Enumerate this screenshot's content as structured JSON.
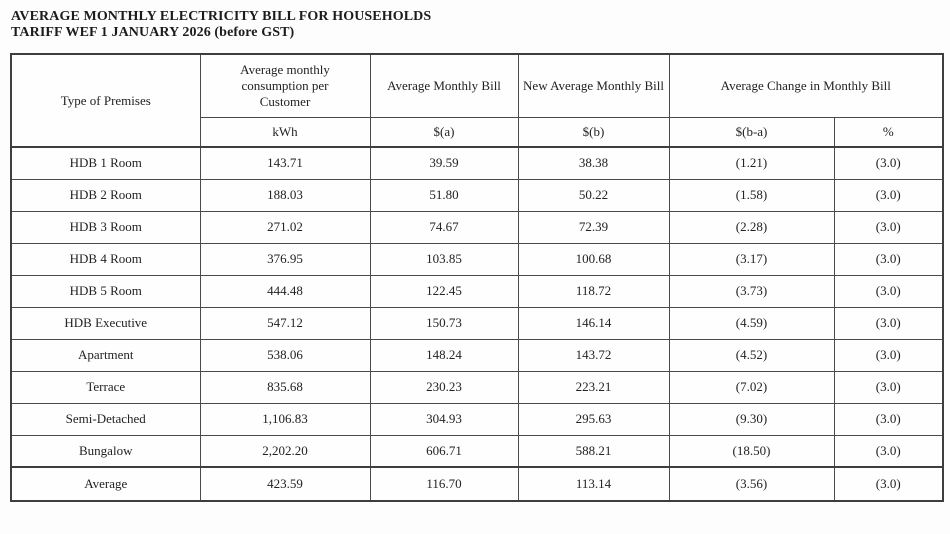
{
  "title": {
    "line1": "AVERAGE MONTHLY ELECTRICITY BILL FOR HOUSEHOLDS",
    "line2": "TARIFF WEF 1 JANUARY 2026 (before GST)"
  },
  "table": {
    "headers": {
      "type_of_premises": "Type of Premises",
      "consumption": "Average monthly consumption per Customer",
      "avg_bill": "Average Monthly Bill",
      "new_avg_bill": "New Average Monthly Bill",
      "avg_change": "Average Change in Monthly Bill"
    },
    "units": {
      "consumption": "kWh",
      "avg_bill": "$(a)",
      "new_avg_bill": "$(b)",
      "change_amount": "$(b-a)",
      "change_percent": "%"
    },
    "rows": [
      {
        "premises": "HDB 1 Room",
        "consumption": "143.71",
        "avg_bill": "39.59",
        "new_avg_bill": "38.38",
        "change_amount": "(1.21)",
        "change_percent": "(3.0)"
      },
      {
        "premises": "HDB 2 Room",
        "consumption": "188.03",
        "avg_bill": "51.80",
        "new_avg_bill": "50.22",
        "change_amount": "(1.58)",
        "change_percent": "(3.0)"
      },
      {
        "premises": "HDB 3 Room",
        "consumption": "271.02",
        "avg_bill": "74.67",
        "new_avg_bill": "72.39",
        "change_amount": "(2.28)",
        "change_percent": "(3.0)"
      },
      {
        "premises": "HDB 4 Room",
        "consumption": "376.95",
        "avg_bill": "103.85",
        "new_avg_bill": "100.68",
        "change_amount": "(3.17)",
        "change_percent": "(3.0)"
      },
      {
        "premises": "HDB 5 Room",
        "consumption": "444.48",
        "avg_bill": "122.45",
        "new_avg_bill": "118.72",
        "change_amount": "(3.73)",
        "change_percent": "(3.0)"
      },
      {
        "premises": "HDB Executive",
        "consumption": "547.12",
        "avg_bill": "150.73",
        "new_avg_bill": "146.14",
        "change_amount": "(4.59)",
        "change_percent": "(3.0)"
      },
      {
        "premises": "Apartment",
        "consumption": "538.06",
        "avg_bill": "148.24",
        "new_avg_bill": "143.72",
        "change_amount": "(4.52)",
        "change_percent": "(3.0)"
      },
      {
        "premises": "Terrace",
        "consumption": "835.68",
        "avg_bill": "230.23",
        "new_avg_bill": "223.21",
        "change_amount": "(7.02)",
        "change_percent": "(3.0)"
      },
      {
        "premises": "Semi-Detached",
        "consumption": "1,106.83",
        "avg_bill": "304.93",
        "new_avg_bill": "295.63",
        "change_amount": "(9.30)",
        "change_percent": "(3.0)"
      },
      {
        "premises": "Bungalow",
        "consumption": "2,202.20",
        "avg_bill": "606.71",
        "new_avg_bill": "588.21",
        "change_amount": "(18.50)",
        "change_percent": "(3.0)"
      }
    ],
    "average_row": {
      "premises": "Average",
      "consumption": "423.59",
      "avg_bill": "116.70",
      "new_avg_bill": "113.14",
      "change_amount": "(3.56)",
      "change_percent": "(3.0)"
    }
  },
  "colors": {
    "text": "#222222",
    "border": "#4a4a4a",
    "background": "#fdfdfd"
  }
}
